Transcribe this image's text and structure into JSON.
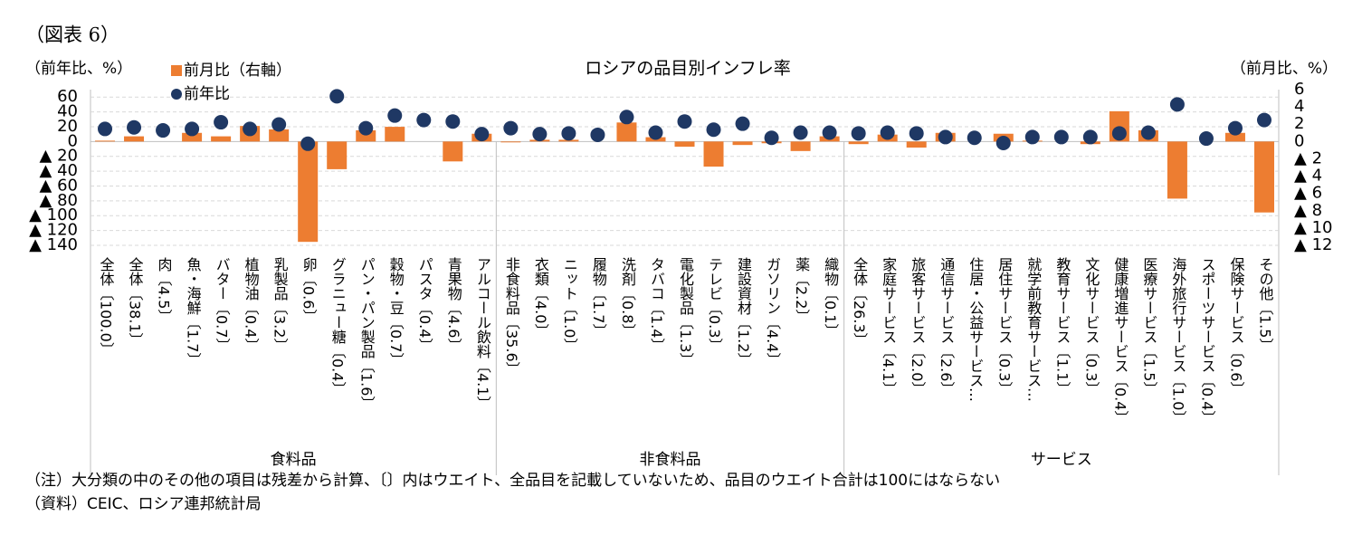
{
  "chart_data": {
    "type": "bar",
    "figure_label": "（図表 6）",
    "title": "ロシアの品目別インフレ率",
    "y_axis_label": "（前年比、%）",
    "y2_axis_label": "（前月比、%）",
    "categories": [
      "全体〔100.0〕",
      "全体〔38.1〕",
      "肉〔4.5〕",
      "魚・海鮮〔1.7〕",
      "バター〔0.7〕",
      "植物油〔0.4〕",
      "乳製品〔3.2〕",
      "卵〔0.6〕",
      "グラニュー糖〔0.4〕",
      "パン・パン製品〔1.6〕",
      "穀物・豆〔0.7〕",
      "パスタ〔0.4〕",
      "青果物〔4.6〕",
      "アルコール飲料〔4.1〕",
      "非食料品〔35.6〕",
      "衣類〔4.0〕",
      "ニット〔1.0〕",
      "履物〔1.7〕",
      "洗剤〔0.8〕",
      "タバコ〔1.4〕",
      "電化製品〔1.3〕",
      "テレビ〔0.3〕",
      "建設資材〔1.2〕",
      "ガソリン〔4.4〕",
      "薬〔2.2〕",
      "織物〔0.1〕",
      "全体〔26.3〕",
      "家庭サービス〔4.1〕",
      "旅客サービス〔2.0〕",
      "通信サービス〔2.6〕",
      "住居・公益サービス…",
      "居住サービス〔0.3〕",
      "就学前教育サービス…",
      "教育サービス〔1.1〕",
      "文化サービス〔0.3〕",
      "健康増進サービス〔0.4〕",
      "医療サービス〔1.5〕",
      "海外旅行サービス〔1.0〕",
      "スポーツサービス〔0.4〕",
      "保険サービス〔0.6〕",
      "その他〔1.5〕"
    ],
    "groups": [
      {
        "name": "食料品",
        "count": 14
      },
      {
        "name": "非食料品",
        "count": 12
      },
      {
        "name": "サービス",
        "count": 15
      }
    ],
    "series": [
      {
        "name": "前月比（右軸）",
        "type": "bar",
        "axis": "y2",
        "color": "#ed7d31",
        "values": [
          0.1,
          0.6,
          0,
          1.0,
          0.6,
          1.8,
          1.4,
          -11.6,
          -3.2,
          1.3,
          1.7,
          0,
          -2.3,
          0.9,
          -0.1,
          0.2,
          0.2,
          0,
          2.2,
          0.5,
          -0.6,
          -2.9,
          -0.4,
          -0.2,
          -1.1,
          0.6,
          -0.3,
          0.8,
          -0.7,
          1.0,
          0,
          0.9,
          0.1,
          0,
          -0.3,
          3.5,
          1.3,
          -6.6,
          0,
          1.0,
          -8.2
        ]
      },
      {
        "name": "前年比",
        "type": "dot",
        "color": "#1f3864",
        "values": [
          17,
          19,
          15,
          17,
          26,
          17,
          23,
          -3,
          61,
          18,
          35,
          29,
          27,
          10,
          18,
          10,
          11,
          9,
          33,
          12,
          27,
          16,
          24,
          5,
          12,
          12,
          11,
          12,
          11,
          6,
          5,
          -2,
          6,
          6,
          6,
          11,
          12,
          50,
          4,
          18,
          29
        ]
      }
    ],
    "ylim": [
      -140,
      70
    ],
    "yticks": [
      60,
      40,
      20,
      0,
      {
        "value": -20,
        "label": "▲ 20"
      },
      {
        "value": -40,
        "label": "▲ 40"
      },
      {
        "value": -60,
        "label": "▲ 60"
      },
      {
        "value": -80,
        "label": "▲ 80"
      },
      {
        "value": -100,
        "label": "▲ 100"
      },
      {
        "value": -120,
        "label": "▲ 120"
      },
      {
        "value": -140,
        "label": "▲ 140"
      }
    ],
    "y2lim": [
      -12,
      6
    ],
    "y2ticks": [
      6,
      4,
      2,
      0,
      {
        "value": -2,
        "label": "▲ 2"
      },
      {
        "value": -4,
        "label": "▲ 4"
      },
      {
        "value": -6,
        "label": "▲ 6"
      },
      {
        "value": -8,
        "label": "▲ 8"
      },
      {
        "value": -10,
        "label": "▲ 10"
      },
      {
        "value": -12,
        "label": "▲ 12"
      }
    ],
    "grid": true,
    "notes": [
      "（注）大分類の中のその他の項目は残差から計算、〔〕内はウエイト、全品目を記載していないため、品目のウエイト合計は100にはならない",
      "（資料）CEIC、ロシア連邦統計局"
    ]
  }
}
